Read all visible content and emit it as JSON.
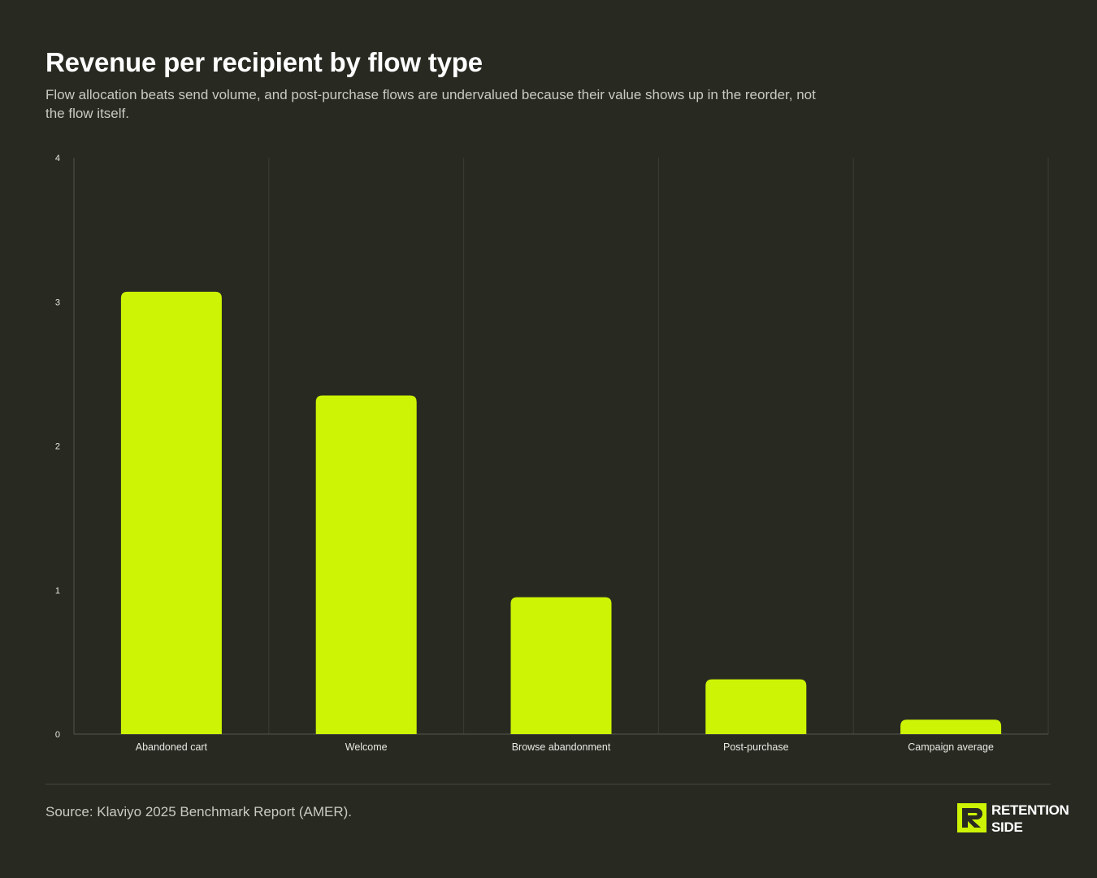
{
  "header": {
    "title": "Revenue per recipient by flow type",
    "subtitle": "Flow allocation beats send volume, and post-purchase flows are undervalued because their value shows up in the reorder, not the flow itself."
  },
  "chart_data": {
    "type": "bar",
    "categories": [
      "Abandoned cart",
      "Welcome",
      "Browse abandonment",
      "Post-purchase",
      "Campaign average"
    ],
    "values": [
      3.07,
      2.35,
      0.95,
      0.38,
      0.1
    ],
    "ylim": [
      0,
      4
    ],
    "yticks": [
      0,
      1,
      2,
      3,
      4
    ],
    "xlabel": "",
    "ylabel": "",
    "grid": "vertical",
    "bar_color": "#ccf404",
    "grid_color": "#3b3d34"
  },
  "footer": {
    "source": "Source: Klaviyo 2025 Benchmark Report (AMER).",
    "logo_line1": "RETENTION",
    "logo_line2": "SIDE",
    "logo_icon": "retention-side-logo-icon"
  },
  "colors": {
    "background": "#282a22",
    "accent": "#ccf404"
  }
}
